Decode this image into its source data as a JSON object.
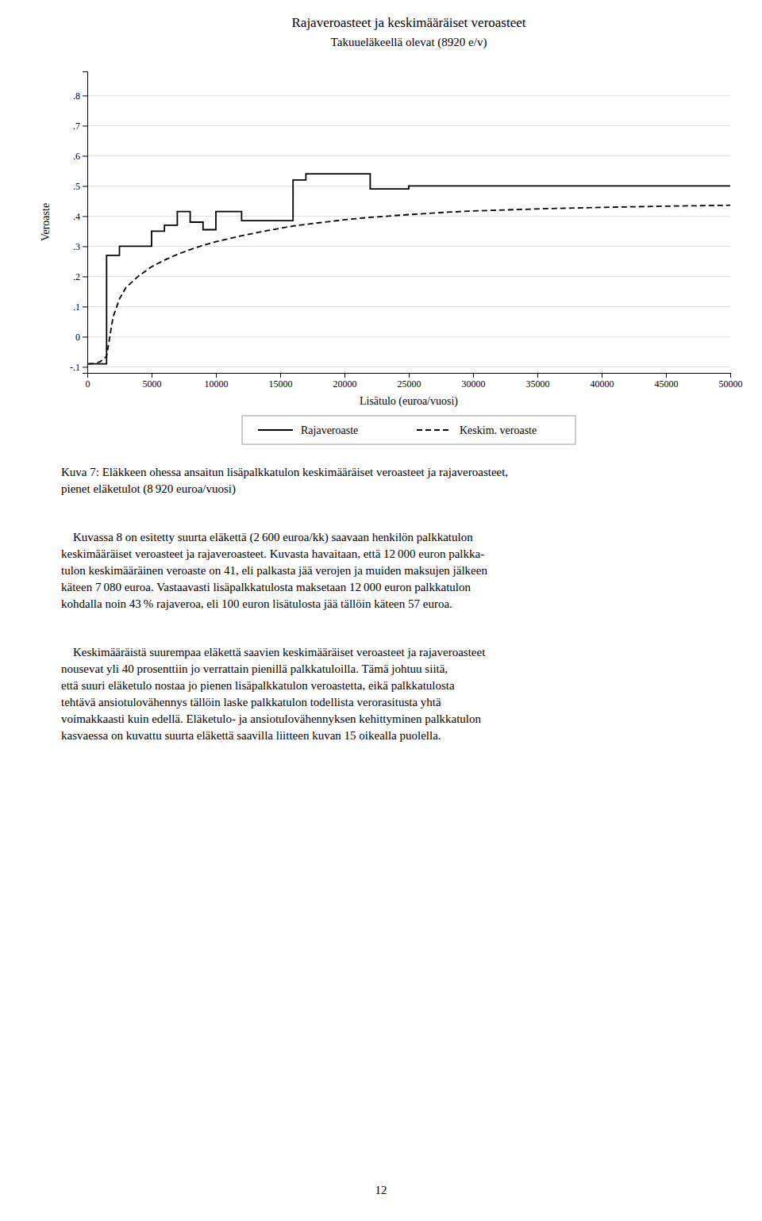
{
  "chart_data": {
    "type": "line",
    "title": "Rajaveroasteet ja keskimääräiset veroasteet",
    "subtitle": "Takuueläkeellä olevat (8920 e/v)",
    "xlabel": "Lisätulo (euroa/vuosi)",
    "ylabel": "Veroaste",
    "xlim": [
      0,
      50000
    ],
    "ylim": [
      -0.12,
      0.88
    ],
    "xticks": [
      0,
      5000,
      10000,
      15000,
      20000,
      25000,
      30000,
      35000,
      40000,
      45000,
      50000
    ],
    "yticks": [
      {
        "value": -0.1,
        "label": "-.1"
      },
      0,
      {
        "value": 0.1,
        "label": ".1"
      },
      {
        "value": 0.2,
        "label": ".2"
      },
      {
        "value": 0.3,
        "label": ".3"
      },
      {
        "value": 0.4,
        "label": ".4"
      },
      {
        "value": 0.5,
        "label": ".5"
      },
      {
        "value": 0.6,
        "label": ".6"
      },
      {
        "value": 0.7,
        "label": ".7"
      },
      {
        "value": 0.8,
        "label": ".8"
      }
    ],
    "grid": true,
    "legend": "bottom",
    "series": [
      {
        "name": "Rajaveroaste",
        "color": "#000000",
        "line_style": "solid",
        "x": [
          0,
          1499,
          1500,
          2499,
          2500,
          4999,
          5000,
          5999,
          6000,
          6999,
          7000,
          7999,
          8000,
          8999,
          9000,
          9999,
          10000,
          11999,
          12000,
          13999,
          14000,
          15999,
          16000,
          16999,
          17000,
          19999,
          20000,
          21999,
          22000,
          24999,
          25000,
          27999,
          28000,
          29999,
          30000,
          34999,
          35000,
          39999,
          40000,
          49999,
          50000
        ],
        "values": [
          -0.09,
          -0.09,
          0.27,
          0.27,
          0.3,
          0.3,
          0.35,
          0.35,
          0.37,
          0.37,
          0.415,
          0.415,
          0.38,
          0.38,
          0.355,
          0.355,
          0.415,
          0.415,
          0.385,
          0.385,
          0.385,
          0.385,
          0.52,
          0.52,
          0.54,
          0.54,
          0.54,
          0.54,
          0.49,
          0.49,
          0.5,
          0.5,
          0.5,
          0.5,
          0.5,
          0.5,
          0.5,
          0.5,
          0.5,
          0.5,
          0.5
        ]
      },
      {
        "name": "Keskim. veroaste",
        "color": "#000000",
        "line_style": "dashed",
        "x": [
          100,
          500,
          1000,
          1500,
          2000,
          2500,
          3000,
          4000,
          5000,
          6000,
          7000,
          8000,
          9000,
          10000,
          12000,
          14000,
          16000,
          18000,
          20000,
          22000,
          25000,
          28000,
          30000,
          35000,
          40000,
          45000,
          50000
        ],
        "values": [
          -0.09,
          -0.089,
          -0.083,
          -0.065,
          0.065,
          0.125,
          0.163,
          0.202,
          0.232,
          0.254,
          0.273,
          0.289,
          0.303,
          0.315,
          0.335,
          0.352,
          0.367,
          0.378,
          0.388,
          0.396,
          0.405,
          0.413,
          0.417,
          0.424,
          0.429,
          0.433,
          0.436
        ]
      }
    ],
    "annotations": [
      "Kuva 7: Eläkkeen ohessa ansaitun lisäpalkkatulon keskimääräiset veroasteet ja rajaveroasteet,\npienet eläketulot (8 920 euroa/vuosi)",
      " Kuvassa 8 on esitetty suurta eläkettä (2 600 euroa/kk) saavaan henkilön palkkatulon\nkeskimääräiset veroasteet ja rajaveroasteet. Kuvasta havaitaan, että 12 000 euron palkka-\ntulon keskimääräinen veroaste on 41, eli palkasta jää verojen ja muiden maksujen jälkeen\nkäteen 7 080 euroa. Vastaavasti lisäpalkkatulosta maksetaan 12 000 euron palkkatulon\nkohdalla noin 43 % rajaveroa, eli 100 euron lisätulosta jää tällöin käteen 57 euroa.",
      " Keskimääräistä suurempaa eläkettä saavien keskimääräiset veroasteet ja rajaveroasteet\nnousevat yli 40 prosenttiin jo verrattain pienillä palkkatuloilla. Tämä johtuu siitä,\nettä suuri eläketulo nostaa jo pienen lisäpalkkatulon veroastetta, eikä palkkatulosta\ntehtävä ansiotulovähennys tällöin laske palkkatulon todellista verorasitusta yhtä\nvoimakkaasti kuin edellä. Eläketulo- ja ansiotulovähennyksen kehittyminen palkkatulon\nkasvaessa on kuvattu suurta eläkettä saavilla liitteen kuvan 15 oikealla puolella.",
      "12"
    ]
  }
}
